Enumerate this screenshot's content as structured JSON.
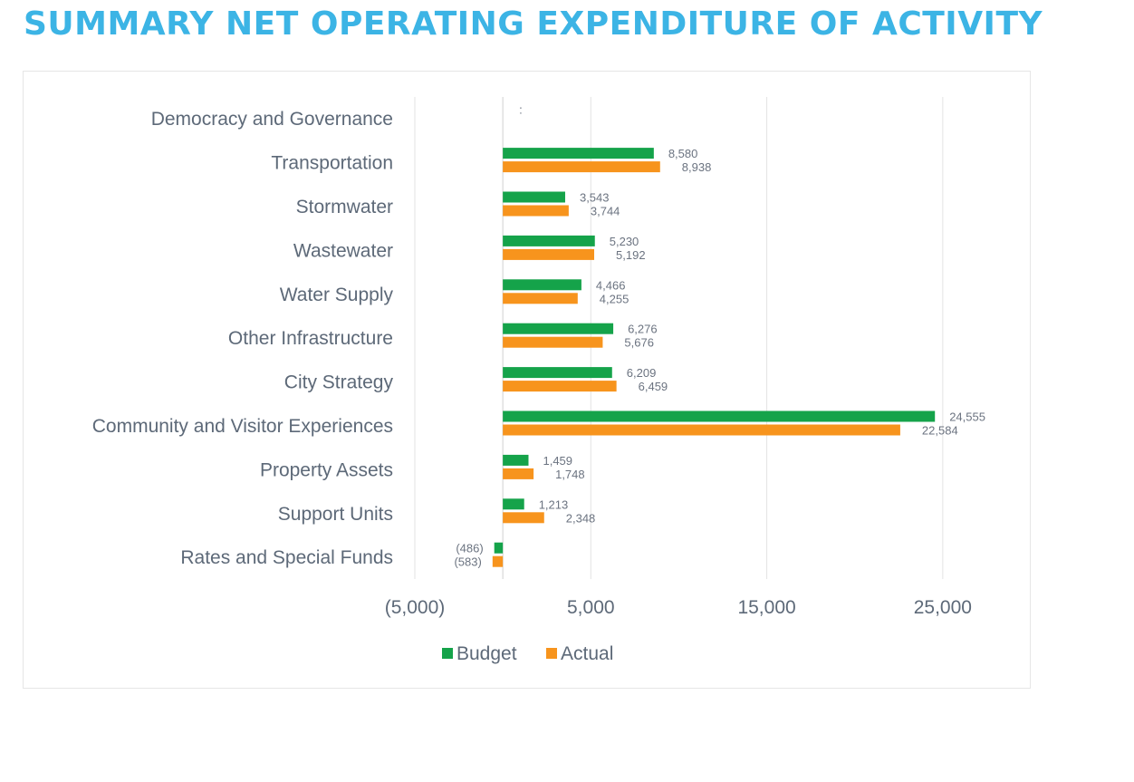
{
  "title": "SUMMARY NET OPERATING EXPENDITURE OF ACTIVITY",
  "colors": {
    "title": "#3cb4e5",
    "budget": "#15a34a",
    "actual": "#f7941d",
    "gridline": "#e3e3e3",
    "text": "#5d6978"
  },
  "chart_data": {
    "type": "bar",
    "orientation": "horizontal",
    "categories": [
      "Democracy and Governance",
      "Transportation",
      "Stormwater",
      "Wastewater",
      "Water Supply",
      "Other Infrastructure",
      "City Strategy",
      "Community and Visitor Experiences",
      "Property Assets",
      "Support Units",
      "Rates and Special Funds"
    ],
    "series": [
      {
        "name": "Budget",
        "color": "#15a34a",
        "values": [
          null,
          8580,
          3543,
          5230,
          4466,
          6276,
          6209,
          24555,
          1459,
          1213,
          -486
        ],
        "labels": [
          ":",
          "8,580",
          "3,543",
          "5,230",
          "4,466",
          "6,276",
          "6,209",
          "24,555",
          "1,459",
          "1,213",
          "(486)"
        ]
      },
      {
        "name": "Actual",
        "color": "#f7941d",
        "values": [
          null,
          8938,
          3744,
          5192,
          4255,
          5676,
          6459,
          22584,
          1748,
          2348,
          -583
        ],
        "labels": [
          "",
          "8,938",
          "3,744",
          "5,192",
          "4,255",
          "5,676",
          "6,459",
          "22,584",
          "1,748",
          "2,348",
          "(583)"
        ]
      }
    ],
    "xlim": [
      -5000,
      30000
    ],
    "xticks": [
      -5000,
      5000,
      15000,
      25000
    ],
    "xtick_labels": [
      "(5,000)",
      "5,000",
      "15,000",
      "25,000"
    ],
    "xlabel": "",
    "ylabel": "",
    "grid": true,
    "legend_position": "bottom"
  }
}
